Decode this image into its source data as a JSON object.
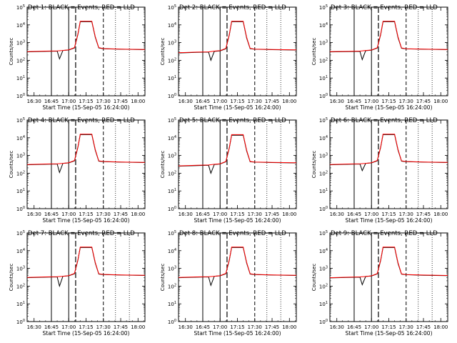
{
  "figure": {
    "panel_title_suffix": "BLACK = Events, RED = LLD",
    "ylabel": "Counts/sec",
    "xlabel": "Start Time (15-Sep-05 16:24:00)",
    "x_tick_labels": [
      "16:30",
      "16:45",
      "17:00",
      "17:15",
      "17:30",
      "17:45",
      "18:00"
    ],
    "y_tick_labels": [
      "10^0",
      "10^1",
      "10^2",
      "10^3",
      "10^4",
      "10^5"
    ],
    "colors": {
      "events": "#000000",
      "lld": "#ff0000"
    },
    "markers": {
      "solid_minutes": [
        16.75,
        17.0
      ],
      "long_dash_minutes": [
        17.1
      ],
      "short_dash_minutes": [
        17.5
      ],
      "dotted_minutes": [
        17.675,
        17.875
      ]
    }
  },
  "chart_data": [
    {
      "type": "line",
      "title": "Det 1: BLACK = Events, RED = LLD",
      "xlabel": "Start Time (15-Sep-05 16:24:00)",
      "ylabel": "Counts/sec",
      "ylog": true,
      "ylim": [
        1,
        100000
      ],
      "xlim": [
        "16:24",
        "18:06"
      ],
      "series": [
        {
          "name": "Events",
          "x": [
            "16:24",
            "16:40",
            "16:50",
            "16:52",
            "16:55",
            "17:00",
            "17:05",
            "17:08",
            "17:10",
            "17:20",
            "17:23",
            "17:26",
            "17:30",
            "17:45",
            "18:06"
          ],
          "values": [
            300,
            320,
            330,
            120,
            360,
            380,
            500,
            3000,
            15000,
            15000,
            2000,
            500,
            450,
            420,
            400
          ]
        },
        {
          "name": "LLD",
          "x": [
            "16:24",
            "16:40",
            "16:50",
            "16:55",
            "17:00",
            "17:05",
            "17:08",
            "17:10",
            "17:20",
            "17:23",
            "17:26",
            "17:30",
            "17:45",
            "18:06"
          ],
          "values": [
            310,
            330,
            340,
            360,
            390,
            520,
            3200,
            16000,
            16000,
            2200,
            520,
            460,
            430,
            410
          ]
        }
      ]
    },
    {
      "type": "line",
      "title": "Det 2: BLACK = Events, RED = LLD",
      "xlabel": "Start Time (15-Sep-05 16:24:00)",
      "ylabel": "Counts/sec",
      "ylog": true,
      "ylim": [
        1,
        100000
      ],
      "xlim": [
        "16:24",
        "18:06"
      ],
      "series": [
        {
          "name": "Events",
          "x": [
            "16:24",
            "16:40",
            "16:50",
            "16:52",
            "16:55",
            "17:00",
            "17:05",
            "17:08",
            "17:10",
            "17:20",
            "17:23",
            "17:26",
            "17:30",
            "17:45",
            "18:06"
          ],
          "values": [
            260,
            280,
            290,
            100,
            320,
            340,
            450,
            2800,
            15000,
            15000,
            1800,
            450,
            420,
            400,
            380
          ]
        },
        {
          "name": "LLD",
          "x": [
            "16:24",
            "16:40",
            "16:50",
            "16:55",
            "17:00",
            "17:05",
            "17:08",
            "17:10",
            "17:20",
            "17:23",
            "17:26",
            "17:30",
            "17:45",
            "18:06"
          ],
          "values": [
            270,
            290,
            300,
            330,
            350,
            470,
            3000,
            16000,
            16000,
            2000,
            470,
            430,
            410,
            390
          ]
        }
      ]
    },
    {
      "type": "line",
      "title": "Det 3: BLACK = Events, RED = LLD",
      "xlabel": "Start Time (15-Sep-05 16:24:00)",
      "ylabel": "Counts/sec",
      "ylog": true,
      "ylim": [
        1,
        100000
      ],
      "xlim": [
        "16:24",
        "18:06"
      ],
      "series": [
        {
          "name": "Events",
          "x": [
            "16:24",
            "16:40",
            "16:50",
            "16:52",
            "16:55",
            "17:00",
            "17:05",
            "17:08",
            "17:10",
            "17:20",
            "17:23",
            "17:26",
            "17:30",
            "17:45",
            "18:06"
          ],
          "values": [
            300,
            310,
            320,
            110,
            350,
            370,
            490,
            2900,
            15000,
            15000,
            1900,
            480,
            440,
            420,
            400
          ]
        },
        {
          "name": "LLD",
          "x": [
            "16:24",
            "16:40",
            "16:50",
            "16:55",
            "17:00",
            "17:05",
            "17:08",
            "17:10",
            "17:20",
            "17:23",
            "17:26",
            "17:30",
            "17:45",
            "18:06"
          ],
          "values": [
            310,
            320,
            330,
            360,
            380,
            510,
            3100,
            16000,
            16000,
            2100,
            500,
            450,
            430,
            410
          ]
        }
      ]
    },
    {
      "type": "line",
      "title": "Det 4: BLACK = Events, RED = LLD",
      "xlabel": "Start Time (15-Sep-05 16:24:00)",
      "ylabel": "Counts/sec",
      "ylog": true,
      "ylim": [
        1,
        100000
      ],
      "xlim": [
        "16:24",
        "18:06"
      ],
      "series": [
        {
          "name": "Events",
          "x": [
            "16:24",
            "16:40",
            "16:50",
            "16:52",
            "16:55",
            "17:00",
            "17:05",
            "17:08",
            "17:10",
            "17:20",
            "17:23",
            "17:26",
            "17:30",
            "17:45",
            "18:06"
          ],
          "values": [
            300,
            320,
            330,
            110,
            360,
            380,
            500,
            3000,
            15000,
            15000,
            2000,
            480,
            450,
            420,
            400
          ]
        },
        {
          "name": "LLD",
          "x": [
            "16:24",
            "16:40",
            "16:50",
            "16:55",
            "17:00",
            "17:05",
            "17:08",
            "17:10",
            "17:20",
            "17:23",
            "17:26",
            "17:30",
            "17:45",
            "18:06"
          ],
          "values": [
            310,
            330,
            340,
            360,
            390,
            520,
            3200,
            16000,
            16000,
            2200,
            500,
            460,
            430,
            410
          ]
        }
      ]
    },
    {
      "type": "line",
      "title": "Det 5: BLACK = Events, RED = LLD",
      "xlabel": "Start Time (15-Sep-05 16:24:00)",
      "ylabel": "Counts/sec",
      "ylog": true,
      "ylim": [
        1,
        100000
      ],
      "xlim": [
        "16:24",
        "18:06"
      ],
      "series": [
        {
          "name": "Events",
          "x": [
            "16:24",
            "16:40",
            "16:50",
            "16:52",
            "16:55",
            "17:00",
            "17:05",
            "17:08",
            "17:10",
            "17:20",
            "17:23",
            "17:26",
            "17:30",
            "17:45",
            "18:06"
          ],
          "values": [
            250,
            270,
            280,
            100,
            310,
            330,
            440,
            2700,
            14000,
            14000,
            1800,
            440,
            420,
            400,
            380
          ]
        },
        {
          "name": "LLD",
          "x": [
            "16:24",
            "16:40",
            "16:50",
            "16:55",
            "17:00",
            "17:05",
            "17:08",
            "17:10",
            "17:20",
            "17:23",
            "17:26",
            "17:30",
            "17:45",
            "18:06"
          ],
          "values": [
            260,
            280,
            290,
            320,
            340,
            460,
            2900,
            15000,
            15000,
            2000,
            460,
            430,
            410,
            390
          ]
        }
      ]
    },
    {
      "type": "line",
      "title": "Det 6: BLACK = Events, RED = LLD",
      "xlabel": "Start Time (15-Sep-05 16:24:00)",
      "ylabel": "Counts/sec",
      "ylog": true,
      "ylim": [
        1,
        100000
      ],
      "xlim": [
        "16:24",
        "18:06"
      ],
      "series": [
        {
          "name": "Events",
          "x": [
            "16:24",
            "16:40",
            "16:50",
            "16:52",
            "16:55",
            "17:00",
            "17:05",
            "17:08",
            "17:10",
            "17:20",
            "17:23",
            "17:26",
            "17:30",
            "17:45",
            "18:06"
          ],
          "values": [
            300,
            320,
            330,
            140,
            360,
            380,
            500,
            3000,
            15000,
            15000,
            2000,
            480,
            450,
            420,
            400
          ]
        },
        {
          "name": "LLD",
          "x": [
            "16:24",
            "16:40",
            "16:50",
            "16:55",
            "17:00",
            "17:05",
            "17:08",
            "17:10",
            "17:20",
            "17:23",
            "17:26",
            "17:30",
            "17:45",
            "18:06"
          ],
          "values": [
            310,
            330,
            340,
            360,
            390,
            520,
            3200,
            16000,
            16000,
            2200,
            500,
            460,
            430,
            410
          ]
        }
      ]
    },
    {
      "type": "line",
      "title": "Det 7: BLACK = Events, RED = LLD",
      "xlabel": "Start Time (15-Sep-05 16:24:00)",
      "ylabel": "Counts/sec",
      "ylog": true,
      "ylim": [
        1,
        100000
      ],
      "xlim": [
        "16:24",
        "18:06"
      ],
      "series": [
        {
          "name": "Events",
          "x": [
            "16:24",
            "16:40",
            "16:50",
            "16:52",
            "16:55",
            "17:00",
            "17:05",
            "17:08",
            "17:10",
            "17:20",
            "17:23",
            "17:26",
            "17:30",
            "17:45",
            "18:06"
          ],
          "values": [
            300,
            320,
            330,
            100,
            360,
            380,
            500,
            3000,
            15000,
            15000,
            2000,
            480,
            450,
            420,
            400
          ]
        },
        {
          "name": "LLD",
          "x": [
            "16:24",
            "16:40",
            "16:50",
            "16:55",
            "17:00",
            "17:05",
            "17:08",
            "17:10",
            "17:20",
            "17:23",
            "17:26",
            "17:30",
            "17:45",
            "18:06"
          ],
          "values": [
            310,
            330,
            340,
            360,
            390,
            520,
            3200,
            16000,
            16000,
            2200,
            500,
            460,
            430,
            410
          ]
        }
      ]
    },
    {
      "type": "line",
      "title": "Det 8: BLACK = Events, RED = LLD",
      "xlabel": "Start Time (15-Sep-05 16:24:00)",
      "ylabel": "Counts/sec",
      "ylog": true,
      "ylim": [
        1,
        100000
      ],
      "xlim": [
        "16:24",
        "18:06"
      ],
      "series": [
        {
          "name": "Events",
          "x": [
            "16:24",
            "16:40",
            "16:50",
            "16:52",
            "16:55",
            "17:00",
            "17:05",
            "17:08",
            "17:10",
            "17:20",
            "17:23",
            "17:26",
            "17:30",
            "17:45",
            "18:06"
          ],
          "values": [
            300,
            320,
            330,
            110,
            360,
            380,
            500,
            3000,
            15000,
            15000,
            2000,
            480,
            450,
            420,
            400
          ]
        },
        {
          "name": "LLD",
          "x": [
            "16:24",
            "16:40",
            "16:50",
            "16:55",
            "17:00",
            "17:05",
            "17:08",
            "17:10",
            "17:20",
            "17:23",
            "17:26",
            "17:30",
            "17:45",
            "18:06"
          ],
          "values": [
            310,
            330,
            340,
            360,
            390,
            520,
            3200,
            16000,
            16000,
            2200,
            500,
            460,
            430,
            410
          ]
        }
      ]
    },
    {
      "type": "line",
      "title": "Det 9: BLACK = Events, RED = LLD",
      "xlabel": "Start Time (15-Sep-05 16:24:00)",
      "ylabel": "Counts/sec",
      "ylog": true,
      "ylim": [
        1,
        100000
      ],
      "xlim": [
        "16:24",
        "18:06"
      ],
      "series": [
        {
          "name": "Events",
          "x": [
            "16:24",
            "16:40",
            "16:50",
            "16:52",
            "16:55",
            "17:00",
            "17:05",
            "17:08",
            "17:10",
            "17:20",
            "17:23",
            "17:26",
            "17:30",
            "17:45",
            "18:06"
          ],
          "values": [
            290,
            310,
            320,
            120,
            350,
            370,
            490,
            2900,
            15000,
            15000,
            1900,
            470,
            440,
            410,
            390
          ]
        },
        {
          "name": "LLD",
          "x": [
            "16:24",
            "16:40",
            "16:50",
            "16:55",
            "17:00",
            "17:05",
            "17:08",
            "17:10",
            "17:20",
            "17:23",
            "17:26",
            "17:30",
            "17:45",
            "18:06"
          ],
          "values": [
            300,
            320,
            330,
            350,
            380,
            510,
            3100,
            16000,
            16000,
            2100,
            490,
            450,
            420,
            400
          ]
        }
      ]
    }
  ]
}
